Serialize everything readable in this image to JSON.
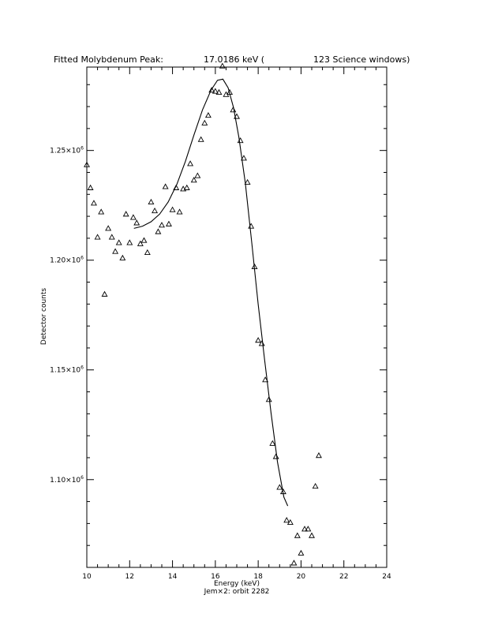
{
  "chart_data": {
    "type": "scatter",
    "title": {
      "left": "Fitted Molybdenum Peak:",
      "energy": "17.0186 keV (",
      "right": "123 Science windows)"
    },
    "xlabel": "Energy (keV)",
    "ylabel": "Detector counts",
    "footer": "Jem×2: orbit 2282",
    "xlim": [
      10,
      24
    ],
    "ylim": [
      1060000,
      1288000
    ],
    "x_ticks": [
      10,
      12,
      14,
      16,
      18,
      20,
      22,
      24
    ],
    "x_tick_labels": [
      "10",
      "12",
      "14",
      "16",
      "18",
      "20",
      "22",
      "24"
    ],
    "y_ticks": [
      {
        "value": 1100000,
        "mantissa": "1.10×10",
        "exp": "6"
      },
      {
        "value": 1150000,
        "mantissa": "1.15×10",
        "exp": "6"
      },
      {
        "value": 1200000,
        "mantissa": "1.20×10",
        "exp": "6"
      },
      {
        "value": 1250000,
        "mantissa": "1.25×10",
        "exp": "6"
      }
    ],
    "grid": false,
    "marker": "triangle",
    "points": [
      [
        10.0,
        1243500
      ],
      [
        10.17,
        1233000
      ],
      [
        10.33,
        1226000
      ],
      [
        10.5,
        1210500
      ],
      [
        10.67,
        1222000
      ],
      [
        10.83,
        1184500
      ],
      [
        11.0,
        1214500
      ],
      [
        11.17,
        1210500
      ],
      [
        11.33,
        1204000
      ],
      [
        11.5,
        1208000
      ],
      [
        11.67,
        1201000
      ],
      [
        11.83,
        1221000
      ],
      [
        12.0,
        1208000
      ],
      [
        12.17,
        1219500
      ],
      [
        12.33,
        1217000
      ],
      [
        12.5,
        1207500
      ],
      [
        12.67,
        1209000
      ],
      [
        12.83,
        1203500
      ],
      [
        13.0,
        1226500
      ],
      [
        13.17,
        1222500
      ],
      [
        13.33,
        1213000
      ],
      [
        13.5,
        1216000
      ],
      [
        13.67,
        1233500
      ],
      [
        13.83,
        1216500
      ],
      [
        14.0,
        1223000
      ],
      [
        14.17,
        1233000
      ],
      [
        14.33,
        1222000
      ],
      [
        14.5,
        1232500
      ],
      [
        14.67,
        1233000
      ],
      [
        14.83,
        1244000
      ],
      [
        15.0,
        1236500
      ],
      [
        15.17,
        1238500
      ],
      [
        15.33,
        1255000
      ],
      [
        15.5,
        1262500
      ],
      [
        15.67,
        1266000
      ],
      [
        15.83,
        1277500
      ],
      [
        16.0,
        1277000
      ],
      [
        16.17,
        1276500
      ],
      [
        16.33,
        1288500
      ],
      [
        16.5,
        1275500
      ],
      [
        16.67,
        1276500
      ],
      [
        16.83,
        1268500
      ],
      [
        17.0,
        1265500
      ],
      [
        17.17,
        1254500
      ],
      [
        17.33,
        1246500
      ],
      [
        17.5,
        1235500
      ],
      [
        17.67,
        1215500
      ],
      [
        17.83,
        1197000
      ],
      [
        18.0,
        1163500
      ],
      [
        18.17,
        1162000
      ],
      [
        18.33,
        1145500
      ],
      [
        18.5,
        1136500
      ],
      [
        18.67,
        1116500
      ],
      [
        18.83,
        1110500
      ],
      [
        19.0,
        1096500
      ],
      [
        19.17,
        1094500
      ],
      [
        19.33,
        1081500
      ],
      [
        19.5,
        1080500
      ],
      [
        19.67,
        1062000
      ],
      [
        19.83,
        1074500
      ],
      [
        20.0,
        1066500
      ],
      [
        20.17,
        1077500
      ],
      [
        20.33,
        1077500
      ],
      [
        20.5,
        1074500
      ],
      [
        20.67,
        1097000
      ],
      [
        20.83,
        1111000
      ]
    ],
    "fit_curve": [
      [
        12.2,
        1214500
      ],
      [
        12.6,
        1215500
      ],
      [
        13.0,
        1217500
      ],
      [
        13.4,
        1221000
      ],
      [
        13.8,
        1226500
      ],
      [
        14.2,
        1234500
      ],
      [
        14.6,
        1245000
      ],
      [
        15.0,
        1257000
      ],
      [
        15.4,
        1268500
      ],
      [
        15.8,
        1277500
      ],
      [
        16.1,
        1282000
      ],
      [
        16.35,
        1282500
      ],
      [
        16.6,
        1278500
      ],
      [
        16.85,
        1269500
      ],
      [
        17.1,
        1256000
      ],
      [
        17.4,
        1235000
      ],
      [
        17.7,
        1208000
      ],
      [
        18.0,
        1180000
      ],
      [
        18.3,
        1154500
      ],
      [
        18.6,
        1130500
      ],
      [
        18.9,
        1108000
      ],
      [
        19.2,
        1092000
      ],
      [
        19.38,
        1088000
      ]
    ]
  }
}
